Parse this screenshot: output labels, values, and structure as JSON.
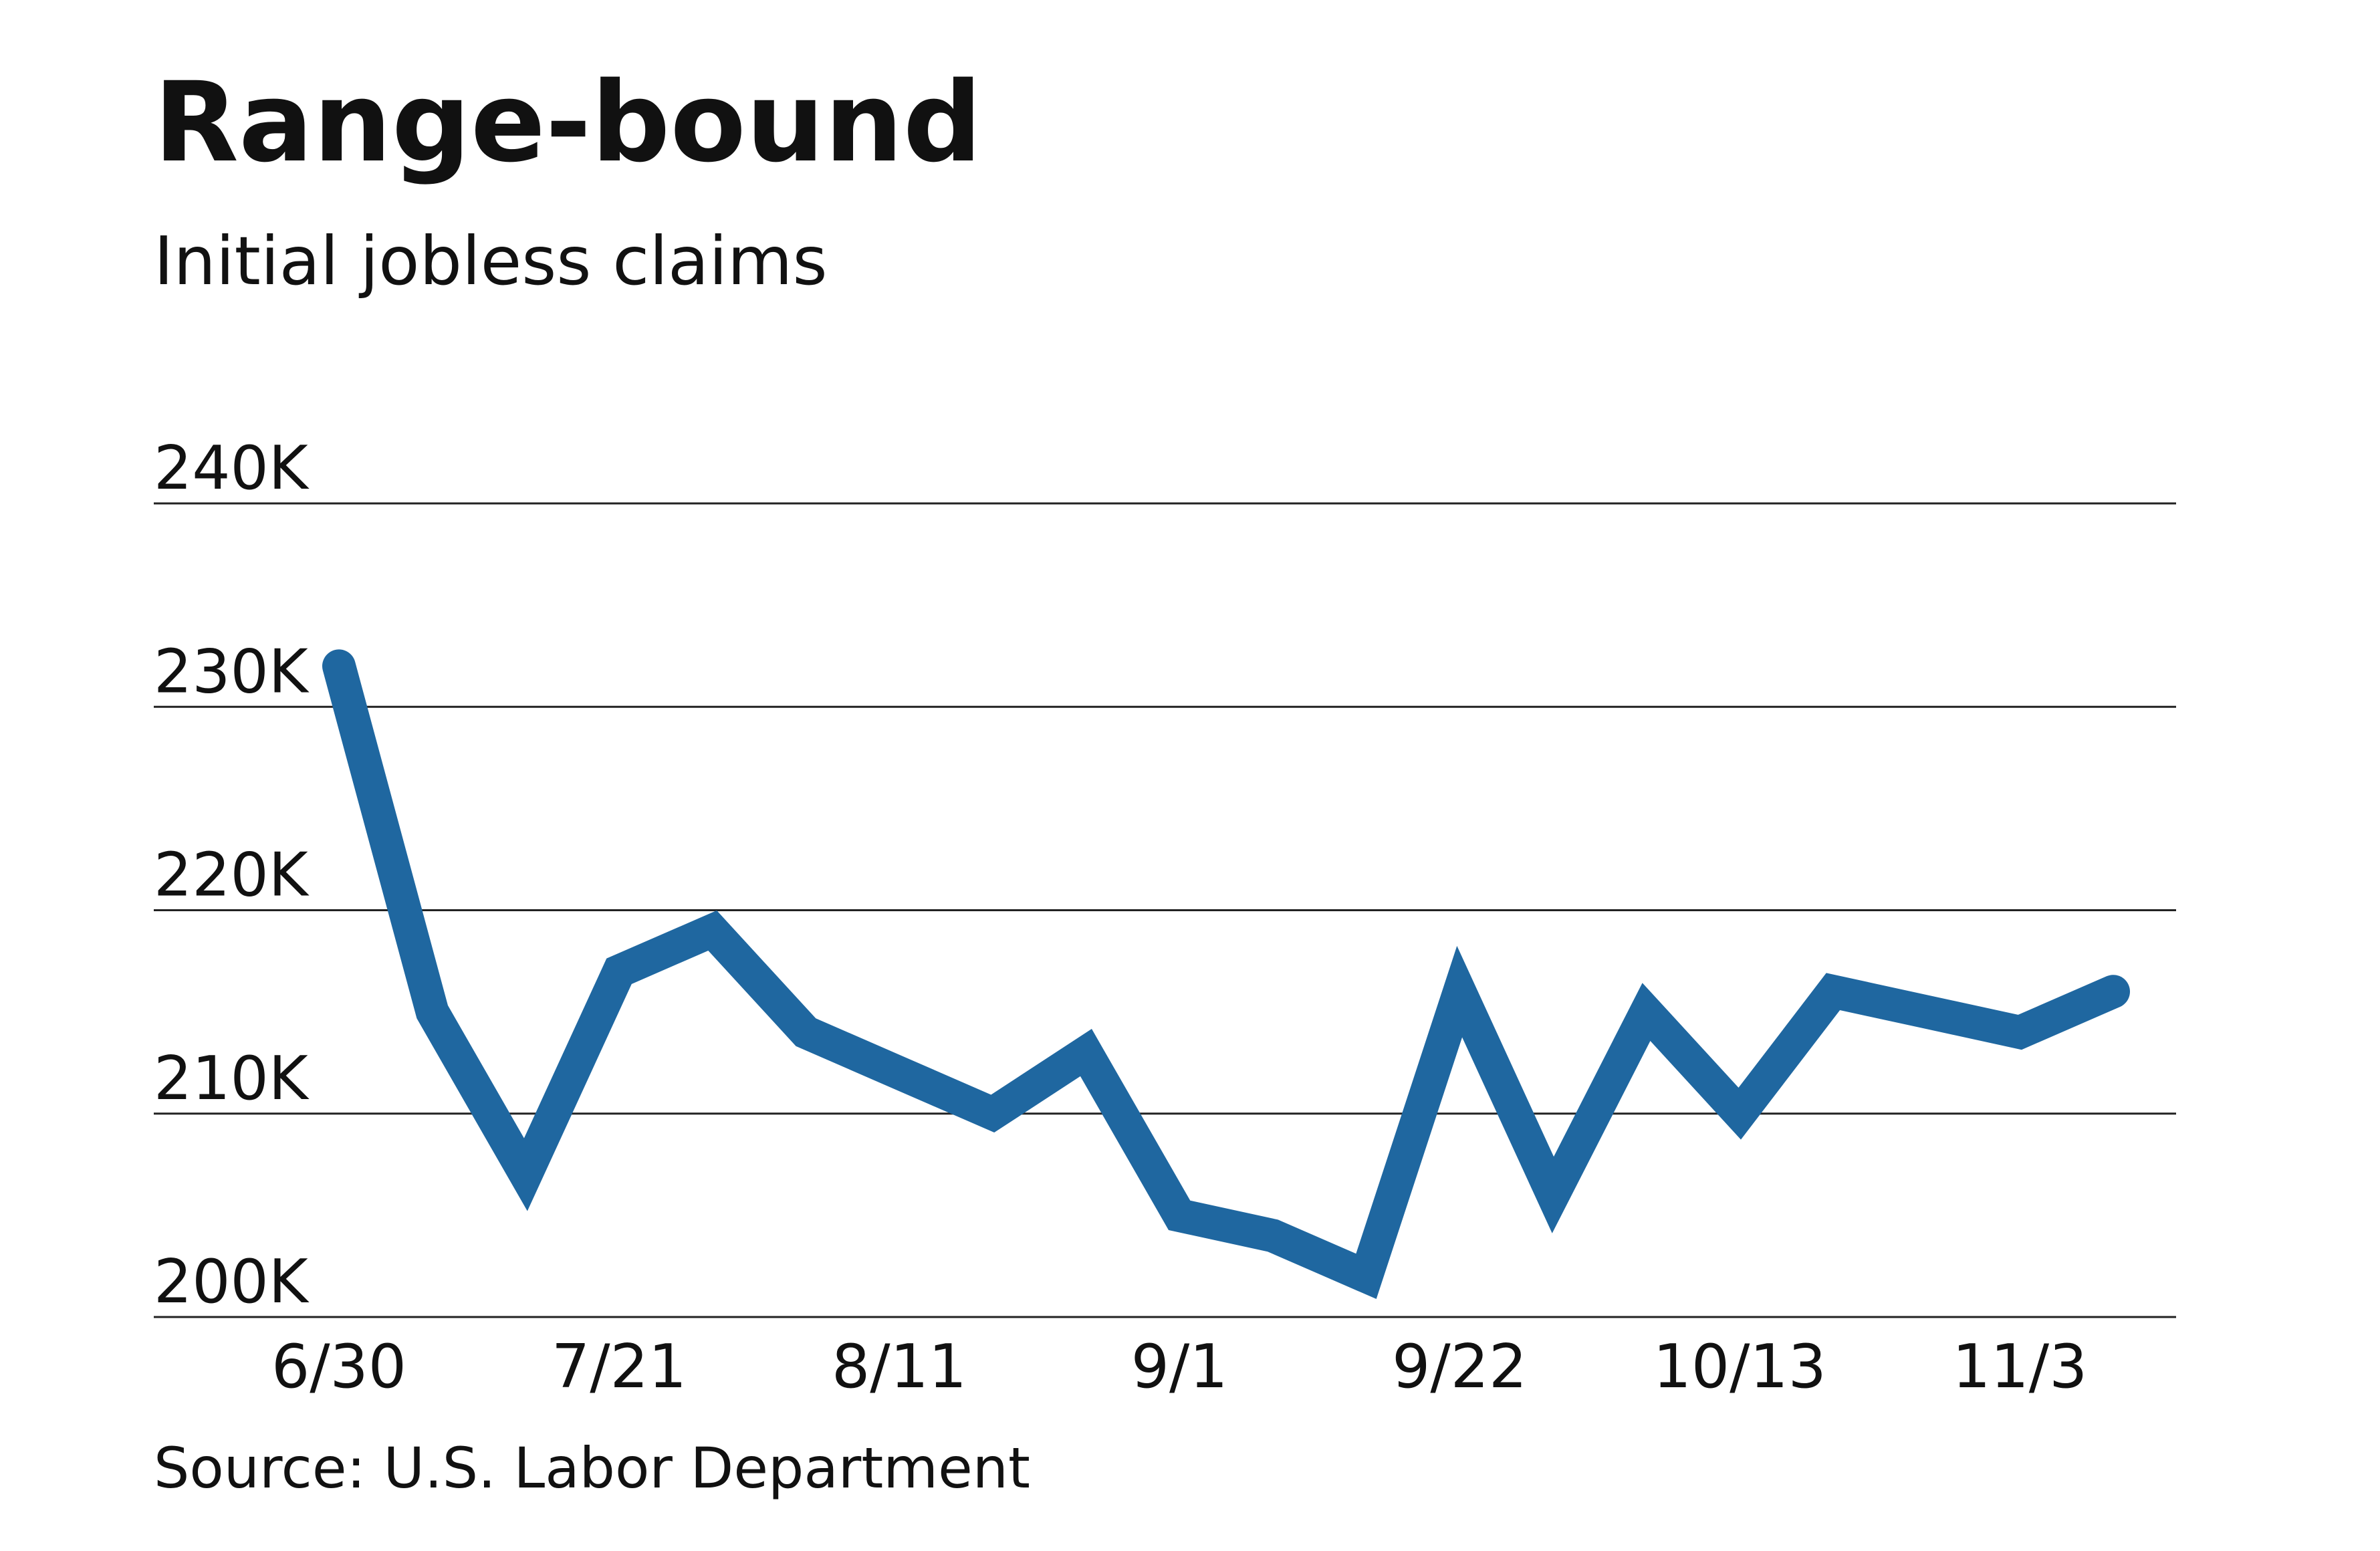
{
  "chart_data": {
    "type": "line",
    "title": "Range-bound",
    "subtitle": "Initial jobless claims",
    "source": "Source: U.S. Labor Department",
    "categories": [
      "6/30",
      null,
      null,
      "7/21",
      null,
      null,
      "8/11",
      null,
      null,
      "9/1",
      null,
      null,
      "9/22",
      null,
      null,
      "10/13",
      null,
      null,
      "11/3",
      null
    ],
    "values": [
      232000,
      215000,
      207000,
      217000,
      219000,
      214000,
      212000,
      210000,
      213000,
      205000,
      204000,
      202000,
      216000,
      206000,
      215000,
      210000,
      216000,
      215000,
      214000,
      216000
    ],
    "color": "#1f67a0",
    "ylim": [
      200000,
      240000
    ],
    "yticks": [
      {
        "value": 200000,
        "label": "200K"
      },
      {
        "value": 210000,
        "label": "210K"
      },
      {
        "value": 220000,
        "label": "220K"
      },
      {
        "value": 230000,
        "label": "230K"
      },
      {
        "value": 240000,
        "label": "240K"
      }
    ],
    "grid": true
  }
}
